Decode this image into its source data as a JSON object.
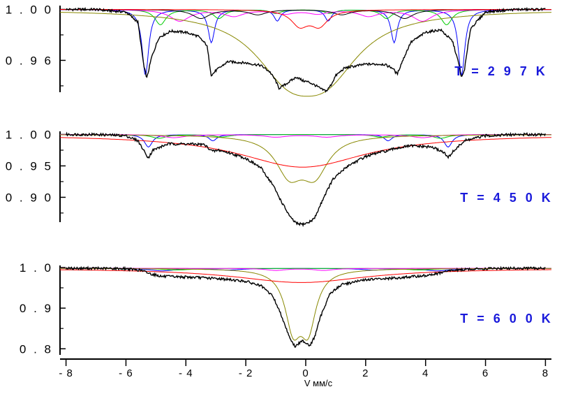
{
  "chart_data": {
    "type": "line",
    "xlabel": "V мм/с",
    "xlim": [
      -8.2,
      8.2
    ],
    "xticks": [
      -8,
      -6,
      -4,
      -2,
      0,
      2,
      4,
      6,
      8
    ],
    "xtick_labels": [
      "- 8",
      "- 6",
      "- 4",
      "- 2",
      "0",
      "2",
      "4",
      "6",
      "8"
    ],
    "colors": {
      "spectrum": "#000000",
      "sextet_outer": "#0000ff",
      "sextet_mid": "#00cc00",
      "sextet_inner": "#ff00ff",
      "broad_doublet": "#888800",
      "center_doublet": "#ff0000",
      "extra": "#000000",
      "temp_label": "#1a1adb"
    },
    "panels": [
      {
        "label": "T = 2 9 7 K",
        "ylim": [
          0.935,
          1.003
        ],
        "yticks": [
          1.0,
          0.96
        ],
        "ytick_labels": [
          "1 . 0 0",
          "0 . 9 6"
        ],
        "minor_yticks": [
          0.98,
          0.94
        ],
        "spectrum": [
          [
            -8.0,
            1.0
          ],
          [
            -7.0,
            1.0
          ],
          [
            -6.6,
            0.999
          ],
          [
            -6.0,
            0.998
          ],
          [
            -5.6,
            0.99
          ],
          [
            -5.4,
            0.955
          ],
          [
            -5.3,
            0.946
          ],
          [
            -5.15,
            0.962
          ],
          [
            -4.9,
            0.978
          ],
          [
            -4.5,
            0.983
          ],
          [
            -4.0,
            0.982
          ],
          [
            -3.6,
            0.979
          ],
          [
            -3.3,
            0.972
          ],
          [
            -3.15,
            0.948
          ],
          [
            -3.0,
            0.952
          ],
          [
            -2.6,
            0.959
          ],
          [
            -2.0,
            0.958
          ],
          [
            -1.5,
            0.956
          ],
          [
            -1.2,
            0.951
          ],
          [
            -1.0,
            0.944
          ],
          [
            -0.9,
            0.938
          ],
          [
            -0.75,
            0.94
          ],
          [
            -0.5,
            0.944
          ],
          [
            -0.3,
            0.947
          ],
          [
            -0.1,
            0.944
          ],
          [
            0.1,
            0.943
          ],
          [
            0.35,
            0.94
          ],
          [
            0.55,
            0.937
          ],
          [
            0.7,
            0.936
          ],
          [
            0.85,
            0.941
          ],
          [
            1.0,
            0.948
          ],
          [
            1.3,
            0.954
          ],
          [
            2.0,
            0.957
          ],
          [
            2.6,
            0.957
          ],
          [
            2.9,
            0.954
          ],
          [
            3.05,
            0.949
          ],
          [
            3.2,
            0.958
          ],
          [
            3.5,
            0.974
          ],
          [
            4.0,
            0.982
          ],
          [
            4.5,
            0.984
          ],
          [
            4.9,
            0.975
          ],
          [
            5.1,
            0.958
          ],
          [
            5.2,
            0.946
          ],
          [
            5.3,
            0.953
          ],
          [
            5.5,
            0.985
          ],
          [
            6.0,
            0.998
          ],
          [
            7.0,
            1.0
          ],
          [
            8.0,
            1.0
          ]
        ],
        "components": [
          {
            "color": "#0000ff",
            "baseline": 1.0,
            "peaks": [
              [
                -5.35,
                0.052,
                0.13
              ],
              [
                -3.15,
                0.026,
                0.13
              ],
              [
                -0.95,
                0.009,
                0.13
              ],
              [
                0.75,
                0.009,
                0.13
              ],
              [
                2.95,
                0.026,
                0.13
              ],
              [
                5.2,
                0.052,
                0.13
              ]
            ]
          },
          {
            "color": "#00cc00",
            "baseline": 1.0,
            "peaks": [
              [
                -4.85,
                0.012,
                0.22
              ],
              [
                -2.9,
                0.007,
                0.22
              ],
              [
                -1.0,
                0.003,
                0.22
              ],
              [
                0.8,
                0.003,
                0.22
              ],
              [
                2.7,
                0.007,
                0.22
              ],
              [
                4.7,
                0.012,
                0.22
              ]
            ]
          },
          {
            "color": "#ff00ff",
            "baseline": 1.0,
            "peaks": [
              [
                -4.2,
                0.009,
                0.4
              ],
              [
                -2.4,
                0.005,
                0.4
              ],
              [
                -0.7,
                0.003,
                0.4
              ],
              [
                0.4,
                0.003,
                0.4
              ],
              [
                2.1,
                0.005,
                0.4
              ],
              [
                3.9,
                0.009,
                0.4
              ]
            ]
          },
          {
            "color": "#000000",
            "baseline": 1.0,
            "peaks": [
              [
                -3.5,
                0.007,
                0.35
              ],
              [
                -1.6,
                0.004,
                0.35
              ],
              [
                1.2,
                0.004,
                0.35
              ],
              [
                3.3,
                0.007,
                0.35
              ]
            ]
          },
          {
            "color": "#888800",
            "baseline": 1.0,
            "peaks": [
              [
                -0.6,
                0.042,
                1.35
              ],
              [
                0.7,
                0.042,
                1.35
              ]
            ]
          },
          {
            "color": "#ff0000",
            "baseline": 1.0,
            "peaks": [
              [
                -0.2,
                0.012,
                0.35
              ],
              [
                0.45,
                0.012,
                0.35
              ]
            ]
          }
        ]
      },
      {
        "label": "T = 4 5 0 K",
        "ylim": [
          0.856,
          1.005
        ],
        "yticks": [
          1.0,
          0.95,
          0.9
        ],
        "ytick_labels": [
          "1 . 0 0",
          "0 . 9 5",
          "0 . 9 0"
        ],
        "minor_yticks": [
          0.975,
          0.925,
          0.875
        ],
        "spectrum": [
          [
            -8.0,
            1.0
          ],
          [
            -7.0,
            1.0
          ],
          [
            -6.0,
            0.998
          ],
          [
            -5.6,
            0.99
          ],
          [
            -5.35,
            0.97
          ],
          [
            -5.25,
            0.963
          ],
          [
            -5.1,
            0.975
          ],
          [
            -4.6,
            0.985
          ],
          [
            -4.0,
            0.985
          ],
          [
            -3.4,
            0.984
          ],
          [
            -3.1,
            0.973
          ],
          [
            -2.9,
            0.975
          ],
          [
            -2.5,
            0.97
          ],
          [
            -2.0,
            0.962
          ],
          [
            -1.5,
            0.947
          ],
          [
            -1.1,
            0.92
          ],
          [
            -0.8,
            0.892
          ],
          [
            -0.5,
            0.867
          ],
          [
            -0.3,
            0.858
          ],
          [
            -0.1,
            0.857
          ],
          [
            0.1,
            0.86
          ],
          [
            0.3,
            0.867
          ],
          [
            0.6,
            0.9
          ],
          [
            0.9,
            0.928
          ],
          [
            1.4,
            0.95
          ],
          [
            2.0,
            0.965
          ],
          [
            2.5,
            0.972
          ],
          [
            2.75,
            0.974
          ],
          [
            3.0,
            0.978
          ],
          [
            3.5,
            0.982
          ],
          [
            4.2,
            0.98
          ],
          [
            4.6,
            0.972
          ],
          [
            4.75,
            0.963
          ],
          [
            4.9,
            0.972
          ],
          [
            5.3,
            0.99
          ],
          [
            6.0,
            0.998
          ],
          [
            7.0,
            1.0
          ],
          [
            8.0,
            1.0
          ]
        ],
        "components": [
          {
            "color": "#0000ff",
            "baseline": 1.0,
            "peaks": [
              [
                -5.25,
                0.02,
                0.16
              ],
              [
                -3.1,
                0.01,
                0.16
              ],
              [
                2.75,
                0.01,
                0.16
              ],
              [
                4.75,
                0.02,
                0.16
              ]
            ]
          },
          {
            "color": "#00cc00",
            "baseline": 1.0,
            "peaks": [
              [
                -4.9,
                0.006,
                0.3
              ],
              [
                -2.8,
                0.004,
                0.3
              ],
              [
                2.5,
                0.004,
                0.3
              ],
              [
                4.5,
                0.006,
                0.3
              ]
            ]
          },
          {
            "color": "#ff00ff",
            "baseline": 1.0,
            "peaks": [
              [
                -4.4,
                0.005,
                0.45
              ],
              [
                -1.0,
                0.004,
                0.45
              ],
              [
                0.7,
                0.004,
                0.45
              ],
              [
                3.9,
                0.005,
                0.45
              ]
            ]
          },
          {
            "color": "#888800",
            "baseline": 1.0,
            "peaks": [
              [
                -0.55,
                0.058,
                0.55
              ],
              [
                0.3,
                0.058,
                0.55
              ]
            ]
          },
          {
            "color": "#ff0000",
            "baseline": 1.0,
            "peaks": [
              [
                -0.1,
                0.052,
                2.6
              ]
            ]
          }
        ]
      },
      {
        "label": "T = 6 0 0 K",
        "ylim": [
          0.785,
          1.005
        ],
        "yticks": [
          1.0,
          0.9,
          0.8
        ],
        "ytick_labels": [
          "1 . 0",
          "0 . 9",
          "0 . 8"
        ],
        "minor_yticks": [
          0.95,
          0.85
        ],
        "spectrum": [
          [
            -8.0,
            0.998
          ],
          [
            -7.0,
            0.998
          ],
          [
            -6.0,
            0.997
          ],
          [
            -5.5,
            0.993
          ],
          [
            -5.2,
            0.985
          ],
          [
            -4.8,
            0.978
          ],
          [
            -4.2,
            0.977
          ],
          [
            -3.5,
            0.975
          ],
          [
            -2.8,
            0.972
          ],
          [
            -2.0,
            0.966
          ],
          [
            -1.5,
            0.955
          ],
          [
            -1.1,
            0.93
          ],
          [
            -0.8,
            0.88
          ],
          [
            -0.6,
            0.84
          ],
          [
            -0.45,
            0.815
          ],
          [
            -0.35,
            0.805
          ],
          [
            -0.25,
            0.812
          ],
          [
            -0.1,
            0.82
          ],
          [
            0.0,
            0.815
          ],
          [
            0.15,
            0.808
          ],
          [
            0.3,
            0.83
          ],
          [
            0.5,
            0.88
          ],
          [
            0.8,
            0.935
          ],
          [
            1.2,
            0.958
          ],
          [
            2.0,
            0.97
          ],
          [
            2.8,
            0.973
          ],
          [
            3.5,
            0.977
          ],
          [
            4.0,
            0.98
          ],
          [
            4.4,
            0.985
          ],
          [
            4.8,
            0.992
          ],
          [
            5.5,
            0.996
          ],
          [
            6.5,
            0.998
          ],
          [
            8.0,
            0.998
          ]
        ],
        "components": [
          {
            "color": "#0000ff",
            "baseline": 0.998,
            "peaks": [
              [
                -4.8,
                0.006,
                0.5
              ],
              [
                -2.6,
                0.004,
                0.5
              ],
              [
                2.3,
                0.004,
                0.5
              ],
              [
                4.4,
                0.006,
                0.5
              ]
            ]
          },
          {
            "color": "#00cc00",
            "baseline": 0.998,
            "peaks": [
              [
                -4.3,
                0.004,
                0.6
              ],
              [
                3.8,
                0.004,
                0.6
              ]
            ]
          },
          {
            "color": "#ff00ff",
            "baseline": 0.998,
            "peaks": [
              [
                -1.0,
                0.005,
                0.4
              ],
              [
                0.6,
                0.005,
                0.4
              ]
            ]
          },
          {
            "color": "#888800",
            "baseline": 0.998,
            "peaks": [
              [
                -0.42,
                0.135,
                0.32
              ],
              [
                0.08,
                0.135,
                0.32
              ]
            ]
          },
          {
            "color": "#ff0000",
            "baseline": 0.998,
            "peaks": [
              [
                -0.15,
                0.035,
                2.7
              ]
            ]
          }
        ]
      }
    ]
  }
}
